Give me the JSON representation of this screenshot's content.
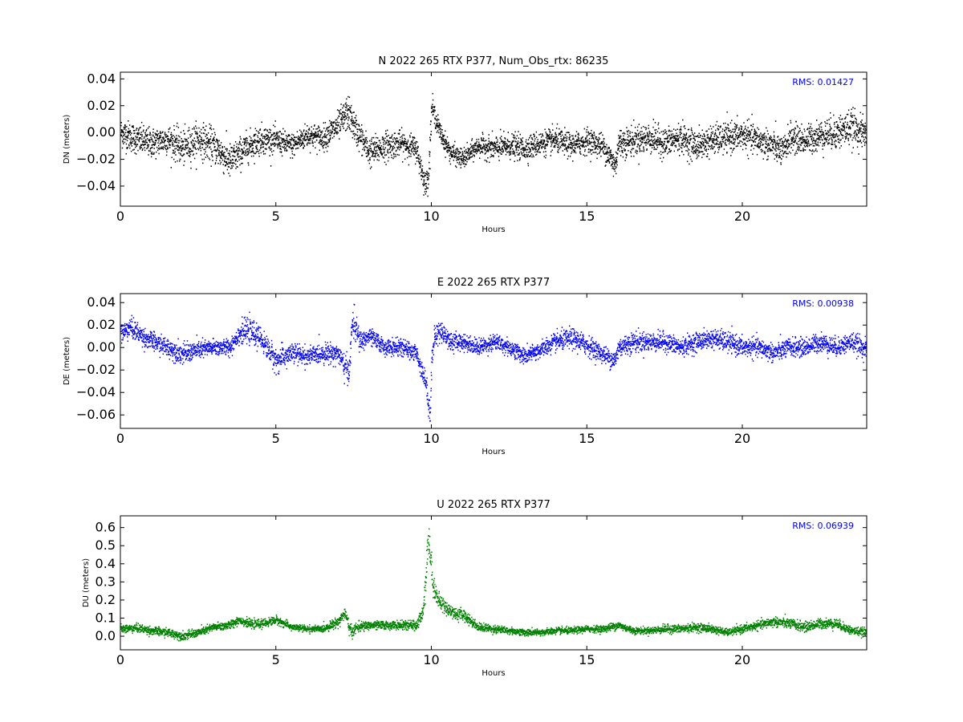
{
  "chart_data": [
    {
      "type": "scatter",
      "title": "N 2022 265 RTX  P377, Num_Obs_rtx: 86235",
      "xlabel": "Hours",
      "ylabel": "DN (meters)",
      "xlim": [
        0,
        24
      ],
      "ylim": [
        -0.055,
        0.045
      ],
      "xticks": [
        0,
        5,
        10,
        15,
        20
      ],
      "xtick_labels": [
        "0",
        "5",
        "10",
        "15",
        "20"
      ],
      "yticks": [
        -0.04,
        -0.02,
        0.0,
        0.02,
        0.04
      ],
      "ytick_labels": [
        "−0.04",
        "−0.02",
        "0.00",
        "0.02",
        "0.04"
      ],
      "grid": false,
      "color": "#000000",
      "rms_label": "RMS:  0.01427",
      "rms_color": "#0000ff",
      "series": [
        {
          "hours": [
            0,
            0.5,
            1,
            1.5,
            2,
            2.5,
            3,
            3.5,
            4,
            4.5,
            5,
            5.5,
            6,
            6.5,
            7,
            7.3,
            7.6,
            8,
            8.5,
            9,
            9.5,
            9.8,
            9.9,
            10,
            10.1,
            10.3,
            10.6,
            11,
            11.5,
            12,
            12.5,
            13,
            13.5,
            14,
            14.5,
            15,
            15.5,
            15.9,
            16,
            16.5,
            17,
            17.5,
            18,
            18.5,
            19,
            19.5,
            20,
            20.5,
            21,
            21.3,
            21.5,
            22,
            22.5,
            23,
            23.5,
            24
          ],
          "center": [
            0.0,
            -0.005,
            -0.008,
            -0.005,
            -0.012,
            -0.005,
            -0.01,
            -0.022,
            -0.012,
            -0.005,
            -0.006,
            -0.01,
            -0.002,
            -0.004,
            0.005,
            0.015,
            0.0,
            -0.015,
            -0.01,
            -0.008,
            -0.012,
            -0.04,
            -0.03,
            0.02,
            0.012,
            -0.002,
            -0.015,
            -0.02,
            -0.01,
            -0.012,
            -0.01,
            -0.012,
            -0.008,
            -0.006,
            -0.01,
            -0.006,
            -0.01,
            -0.025,
            -0.008,
            -0.006,
            -0.004,
            -0.008,
            -0.004,
            -0.01,
            -0.006,
            -0.004,
            -0.002,
            -0.006,
            -0.01,
            -0.015,
            -0.004,
            -0.006,
            -0.002,
            0.0,
            0.004,
            -0.002
          ],
          "spread": [
            0.012,
            0.012,
            0.012,
            0.012,
            0.014,
            0.014,
            0.014,
            0.014,
            0.012,
            0.012,
            0.01,
            0.01,
            0.01,
            0.01,
            0.012,
            0.014,
            0.012,
            0.012,
            0.012,
            0.01,
            0.01,
            0.01,
            0.012,
            0.01,
            0.008,
            0.008,
            0.008,
            0.008,
            0.008,
            0.01,
            0.01,
            0.01,
            0.01,
            0.01,
            0.01,
            0.01,
            0.01,
            0.012,
            0.012,
            0.012,
            0.012,
            0.012,
            0.012,
            0.012,
            0.012,
            0.012,
            0.012,
            0.012,
            0.012,
            0.012,
            0.012,
            0.012,
            0.012,
            0.014,
            0.014,
            0.012
          ]
        }
      ]
    },
    {
      "type": "scatter",
      "title": "E 2022 265 RTX  P377",
      "xlabel": "Hours",
      "ylabel": "DE (meters)",
      "xlim": [
        0,
        24
      ],
      "ylim": [
        -0.072,
        0.048
      ],
      "xticks": [
        0,
        5,
        10,
        15,
        20
      ],
      "xtick_labels": [
        "0",
        "5",
        "10",
        "15",
        "20"
      ],
      "yticks": [
        -0.06,
        -0.04,
        -0.02,
        0.0,
        0.02,
        0.04
      ],
      "ytick_labels": [
        "−0.06",
        "−0.04",
        "−0.02",
        "0.00",
        "0.02",
        "0.04"
      ],
      "grid": false,
      "color": "#0000ff",
      "rms_label": "RMS:  0.00938",
      "rms_color": "#0000ff",
      "series": [
        {
          "hours": [
            0,
            0.3,
            0.8,
            1.5,
            2,
            2.5,
            3,
            3.5,
            3.8,
            4.1,
            4.5,
            5,
            5.5,
            6,
            6.5,
            7,
            7.2,
            7.35,
            7.45,
            7.7,
            8,
            8.5,
            9,
            9.5,
            9.8,
            9.9,
            9.95,
            10,
            10.1,
            10.3,
            10.6,
            11,
            11.5,
            12,
            12.5,
            13,
            13.5,
            14,
            14.5,
            15,
            15.5,
            15.9,
            16,
            16.5,
            17,
            17.5,
            18,
            18.5,
            19,
            19.5,
            20,
            20.5,
            21,
            21.5,
            22,
            22.5,
            23,
            23.5,
            24
          ],
          "center": [
            0.012,
            0.018,
            0.008,
            0.0,
            -0.006,
            -0.002,
            0.0,
            0.0,
            0.012,
            0.015,
            0.008,
            -0.012,
            -0.005,
            -0.008,
            -0.005,
            -0.005,
            -0.018,
            -0.02,
            0.025,
            0.005,
            0.01,
            0.0,
            0.0,
            -0.005,
            -0.03,
            -0.05,
            -0.06,
            -0.01,
            0.01,
            0.015,
            0.005,
            0.005,
            0.0,
            0.005,
            0.0,
            -0.008,
            -0.002,
            0.005,
            0.008,
            0.002,
            -0.006,
            -0.012,
            0.0,
            0.005,
            0.005,
            0.005,
            0.0,
            0.005,
            0.008,
            0.005,
            0.0,
            0.0,
            -0.005,
            0.0,
            0.0,
            0.005,
            0.0,
            0.005,
            -0.002
          ],
          "spread": [
            0.01,
            0.01,
            0.009,
            0.009,
            0.01,
            0.009,
            0.008,
            0.008,
            0.01,
            0.012,
            0.01,
            0.012,
            0.01,
            0.009,
            0.009,
            0.01,
            0.012,
            0.014,
            0.016,
            0.01,
            0.008,
            0.008,
            0.008,
            0.008,
            0.01,
            0.012,
            0.01,
            0.012,
            0.012,
            0.01,
            0.009,
            0.008,
            0.008,
            0.008,
            0.008,
            0.008,
            0.008,
            0.009,
            0.01,
            0.01,
            0.008,
            0.01,
            0.01,
            0.01,
            0.009,
            0.009,
            0.009,
            0.009,
            0.009,
            0.01,
            0.009,
            0.009,
            0.009,
            0.009,
            0.009,
            0.009,
            0.009,
            0.009,
            0.01
          ]
        }
      ]
    },
    {
      "type": "scatter",
      "title": "U 2022 265 RTX  P377",
      "xlabel": "Hours",
      "ylabel": "DU (meters)",
      "xlim": [
        0,
        24
      ],
      "ylim": [
        -0.075,
        0.665
      ],
      "xticks": [
        0,
        5,
        10,
        15,
        20
      ],
      "xtick_labels": [
        "0",
        "5",
        "10",
        "15",
        "20"
      ],
      "yticks": [
        0.0,
        0.1,
        0.2,
        0.3,
        0.4,
        0.5,
        0.6
      ],
      "ytick_labels": [
        "0.0",
        "0.1",
        "0.2",
        "0.3",
        "0.4",
        "0.5",
        "0.6"
      ],
      "grid": false,
      "color": "#008000",
      "rms_label": "RMS:  0.06939",
      "rms_color": "#0000ff",
      "series": [
        {
          "hours": [
            0,
            0.5,
            1,
            1.5,
            2,
            2.5,
            3,
            3.5,
            3.8,
            4.2,
            4.6,
            5,
            5.5,
            6,
            6.5,
            7,
            7.2,
            7.4,
            7.6,
            8,
            8.5,
            9,
            9.5,
            9.7,
            9.8,
            9.88,
            9.95,
            10.05,
            10.2,
            10.5,
            10.8,
            11,
            11.5,
            12,
            12.5,
            13,
            13.5,
            14,
            14.5,
            15,
            15.5,
            16,
            16.5,
            17,
            17.5,
            18,
            18.5,
            19,
            19.5,
            20,
            20.5,
            21,
            21.5,
            22,
            22.5,
            23,
            23.5,
            24
          ],
          "center": [
            0.04,
            0.045,
            0.03,
            0.02,
            0.0,
            0.02,
            0.05,
            0.06,
            0.09,
            0.065,
            0.07,
            0.09,
            0.05,
            0.04,
            0.04,
            0.08,
            0.13,
            0.02,
            0.05,
            0.06,
            0.06,
            0.06,
            0.06,
            0.12,
            0.3,
            0.55,
            0.45,
            0.28,
            0.2,
            0.15,
            0.12,
            0.12,
            0.05,
            0.04,
            0.03,
            0.02,
            0.02,
            0.03,
            0.03,
            0.04,
            0.04,
            0.06,
            0.03,
            0.03,
            0.04,
            0.04,
            0.05,
            0.04,
            0.02,
            0.04,
            0.06,
            0.08,
            0.07,
            0.05,
            0.07,
            0.07,
            0.03,
            0.02
          ],
          "spread": [
            0.025,
            0.025,
            0.025,
            0.025,
            0.025,
            0.025,
            0.025,
            0.025,
            0.025,
            0.025,
            0.025,
            0.025,
            0.02,
            0.02,
            0.02,
            0.03,
            0.04,
            0.04,
            0.03,
            0.025,
            0.025,
            0.025,
            0.03,
            0.05,
            0.1,
            0.1,
            0.1,
            0.07,
            0.05,
            0.04,
            0.035,
            0.035,
            0.025,
            0.025,
            0.02,
            0.02,
            0.02,
            0.02,
            0.02,
            0.02,
            0.02,
            0.025,
            0.02,
            0.02,
            0.025,
            0.025,
            0.025,
            0.025,
            0.02,
            0.025,
            0.025,
            0.03,
            0.03,
            0.03,
            0.03,
            0.03,
            0.025,
            0.025
          ]
        }
      ]
    }
  ]
}
